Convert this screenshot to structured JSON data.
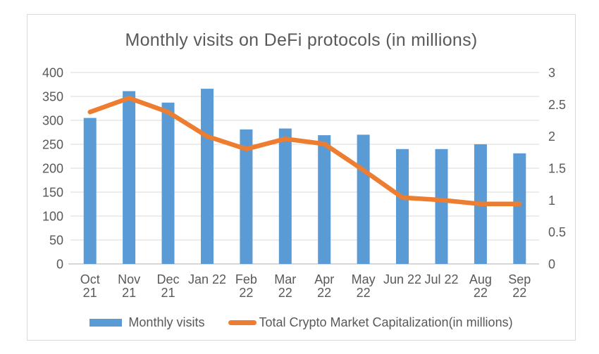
{
  "chart_data": {
    "type": "bar+line",
    "title": "Monthly visits on DeFi protocols (in millions)",
    "categories": [
      "Oct 21",
      "Nov 21",
      "Dec 21",
      "Jan 22",
      "Feb 22",
      "Mar 22",
      "Apr 22",
      "May 22",
      "Jun 22",
      "Jul 22",
      "Aug 22",
      "Sep 22"
    ],
    "x_tick_lines": [
      [
        "Oct",
        "21"
      ],
      [
        "Nov",
        "21"
      ],
      [
        "Dec",
        "21"
      ],
      [
        "Jan 22"
      ],
      [
        "Feb",
        "22"
      ],
      [
        "Mar",
        "22"
      ],
      [
        "Apr",
        "22"
      ],
      [
        "May",
        "22"
      ],
      [
        "Jun 22"
      ],
      [
        "Jul 22"
      ],
      [
        "Aug",
        "22"
      ],
      [
        "Sep",
        "22"
      ]
    ],
    "series": [
      {
        "name": "Monthly visits",
        "type": "bar",
        "axis": "left",
        "color": "#5B9BD5",
        "values": [
          305,
          361,
          337,
          366,
          281,
          283,
          269,
          270,
          240,
          240,
          250,
          231
        ]
      },
      {
        "name": "Total Crypto Market Capitalization(in millions)",
        "type": "line",
        "axis": "right",
        "color": "#ED7D31",
        "values": [
          2.38,
          2.6,
          2.38,
          2.0,
          1.8,
          1.96,
          1.88,
          1.47,
          1.04,
          1.0,
          0.94,
          0.94
        ]
      }
    ],
    "left_axis": {
      "min": 0,
      "max": 400,
      "step": 50,
      "ticks": [
        400,
        350,
        300,
        250,
        200,
        150,
        100,
        50,
        0
      ]
    },
    "right_axis": {
      "min": 0,
      "max": 3,
      "step": 0.5,
      "ticks": [
        3,
        2.5,
        2,
        1.5,
        1,
        0.5,
        0
      ]
    },
    "grid": true,
    "legend_position": "bottom"
  },
  "colors": {
    "bar": "#5B9BD5",
    "line": "#ED7D31",
    "text": "#595959",
    "grid": "#D9D9D9",
    "axis": "#BFBFBF",
    "frame_border": "#D9D9D9",
    "background": "#FFFFFF"
  }
}
